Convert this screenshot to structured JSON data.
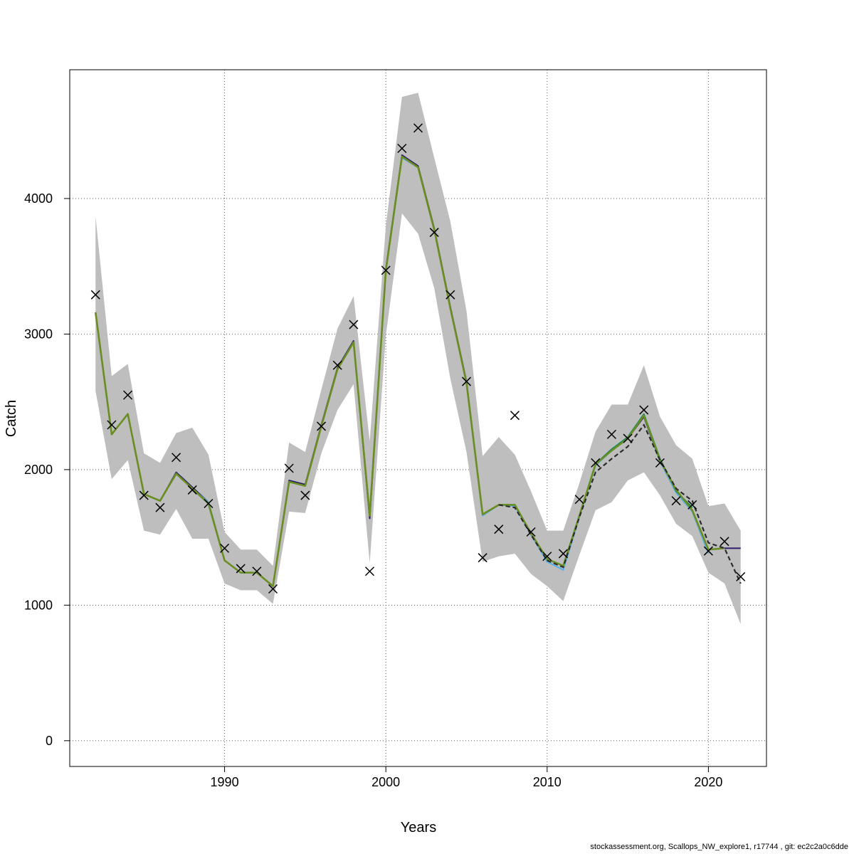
{
  "chart_data": {
    "type": "line",
    "xlabel": "Years",
    "ylabel": "Catch",
    "xlim": [
      1980.4,
      2023.6
    ],
    "ylim": [
      -190,
      4950
    ],
    "x_ticks": [
      1990,
      2000,
      2010,
      2020
    ],
    "y_ticks": [
      0,
      1000,
      2000,
      3000,
      4000
    ],
    "grid": true,
    "colors": {
      "band": "#bebebe",
      "fit": "#6b8e23",
      "grid": "#555555",
      "observed": "#000000",
      "overlays": [
        "#2d1b69",
        "#5aaee8",
        "#0b8a5a",
        "#2a2a2a"
      ]
    },
    "x": [
      1982,
      1983,
      1984,
      1985,
      1986,
      1987,
      1988,
      1989,
      1990,
      1991,
      1992,
      1993,
      1994,
      1995,
      1996,
      1997,
      1998,
      1999,
      2000,
      2001,
      2002,
      2003,
      2004,
      2005,
      2006,
      2007,
      2008,
      2009,
      2010,
      2011,
      2012,
      2013,
      2014,
      2015,
      2016,
      2017,
      2018,
      2019,
      2020,
      2021,
      2022
    ],
    "observed": [
      3290,
      2330,
      2550,
      1810,
      1720,
      2090,
      1850,
      1750,
      1420,
      1270,
      1250,
      1120,
      2010,
      1810,
      2320,
      2770,
      3070,
      1250,
      3470,
      4370,
      4520,
      3750,
      3290,
      2650,
      1350,
      1560,
      2400,
      1540,
      1360,
      1380,
      1780,
      2050,
      2260,
      2230,
      2440,
      2050,
      1770,
      1740,
      1400,
      1470,
      1210
    ],
    "fit": [
      3160,
      2260,
      2410,
      1820,
      1770,
      1970,
      1860,
      1750,
      1330,
      1240,
      1240,
      1140,
      1910,
      1880,
      2320,
      2740,
      2940,
      1660,
      3470,
      4310,
      4230,
      3770,
      3190,
      2640,
      1670,
      1740,
      1740,
      1530,
      1340,
      1290,
      1660,
      2040,
      2140,
      2230,
      2400,
      2070,
      1850,
      1700,
      1410,
      1420,
      null
    ],
    "band_lower": [
      2580,
      1930,
      2070,
      1550,
      1520,
      1710,
      1490,
      1490,
      1160,
      1110,
      1110,
      1010,
      1690,
      1680,
      2120,
      2440,
      2630,
      1310,
      2990,
      3890,
      3740,
      3340,
      2670,
      2130,
      1320,
      1360,
      1380,
      1230,
      1140,
      1030,
      1370,
      1700,
      1760,
      1920,
      1980,
      1810,
      1600,
      1510,
      1240,
      1160,
      860
    ],
    "band_upper": [
      3870,
      2690,
      2780,
      2120,
      2050,
      2270,
      2310,
      2110,
      1540,
      1410,
      1410,
      1290,
      2200,
      2130,
      2590,
      3040,
      3280,
      2210,
      3800,
      4750,
      4780,
      4300,
      3830,
      3170,
      2100,
      2240,
      2110,
      1840,
      1550,
      1550,
      1900,
      2280,
      2480,
      2480,
      2770,
      2390,
      2180,
      2080,
      1730,
      1750,
      1550
    ],
    "overlay_lines": [
      {
        "color": "#2d1b69",
        "dash": false,
        "values": [
          3160,
          2260,
          2410,
          1820,
          1770,
          1980,
          1870,
          1760,
          1330,
          1240,
          1240,
          1140,
          1920,
          1890,
          2330,
          2750,
          2950,
          1640,
          3480,
          4320,
          4240,
          3780,
          3200,
          2650,
          1670,
          1740,
          1740,
          1520,
          1340,
          1290,
          1660,
          2040,
          2150,
          2230,
          2390,
          2060,
          1850,
          1700,
          1410,
          1420,
          1420
        ]
      },
      {
        "color": "#5aaee8",
        "dash": false,
        "values": [
          3160,
          2260,
          2410,
          1820,
          1770,
          1970,
          1860,
          1760,
          1330,
          1240,
          1240,
          1140,
          1910,
          1880,
          2320,
          2740,
          2940,
          1660,
          3470,
          4300,
          4230,
          3770,
          3190,
          2640,
          1660,
          1740,
          1730,
          1520,
          1320,
          1260,
          1650,
          2030,
          2140,
          2230,
          2400,
          2060,
          1830,
          1690,
          1380,
          null,
          null
        ]
      },
      {
        "color": "#0b8a5a",
        "dash": false,
        "values": [
          3160,
          2260,
          2410,
          1820,
          1770,
          1970,
          1860,
          1750,
          1330,
          1240,
          1240,
          1140,
          1910,
          1880,
          2320,
          2740,
          2940,
          1660,
          3470,
          4310,
          4230,
          3770,
          3190,
          2640,
          1670,
          1740,
          1740,
          1530,
          1340,
          1290,
          1660,
          2040,
          2150,
          2240,
          2410,
          2080,
          1840,
          1720,
          null,
          null,
          null
        ]
      },
      {
        "color": "#2a2a2a",
        "dash": true,
        "values": [
          null,
          null,
          null,
          null,
          null,
          null,
          null,
          null,
          null,
          null,
          null,
          null,
          null,
          null,
          null,
          null,
          null,
          null,
          null,
          null,
          null,
          null,
          null,
          null,
          null,
          1740,
          1720,
          1520,
          1330,
          1280,
          1650,
          1980,
          2080,
          2170,
          2330,
          2070,
          1860,
          1770,
          1460,
          1420,
          1160
        ]
      }
    ]
  },
  "footer": {
    "text": "stockassessment.org, Scallops_NW_explore1, r17744 , git: ec2c2a0c6dde"
  }
}
